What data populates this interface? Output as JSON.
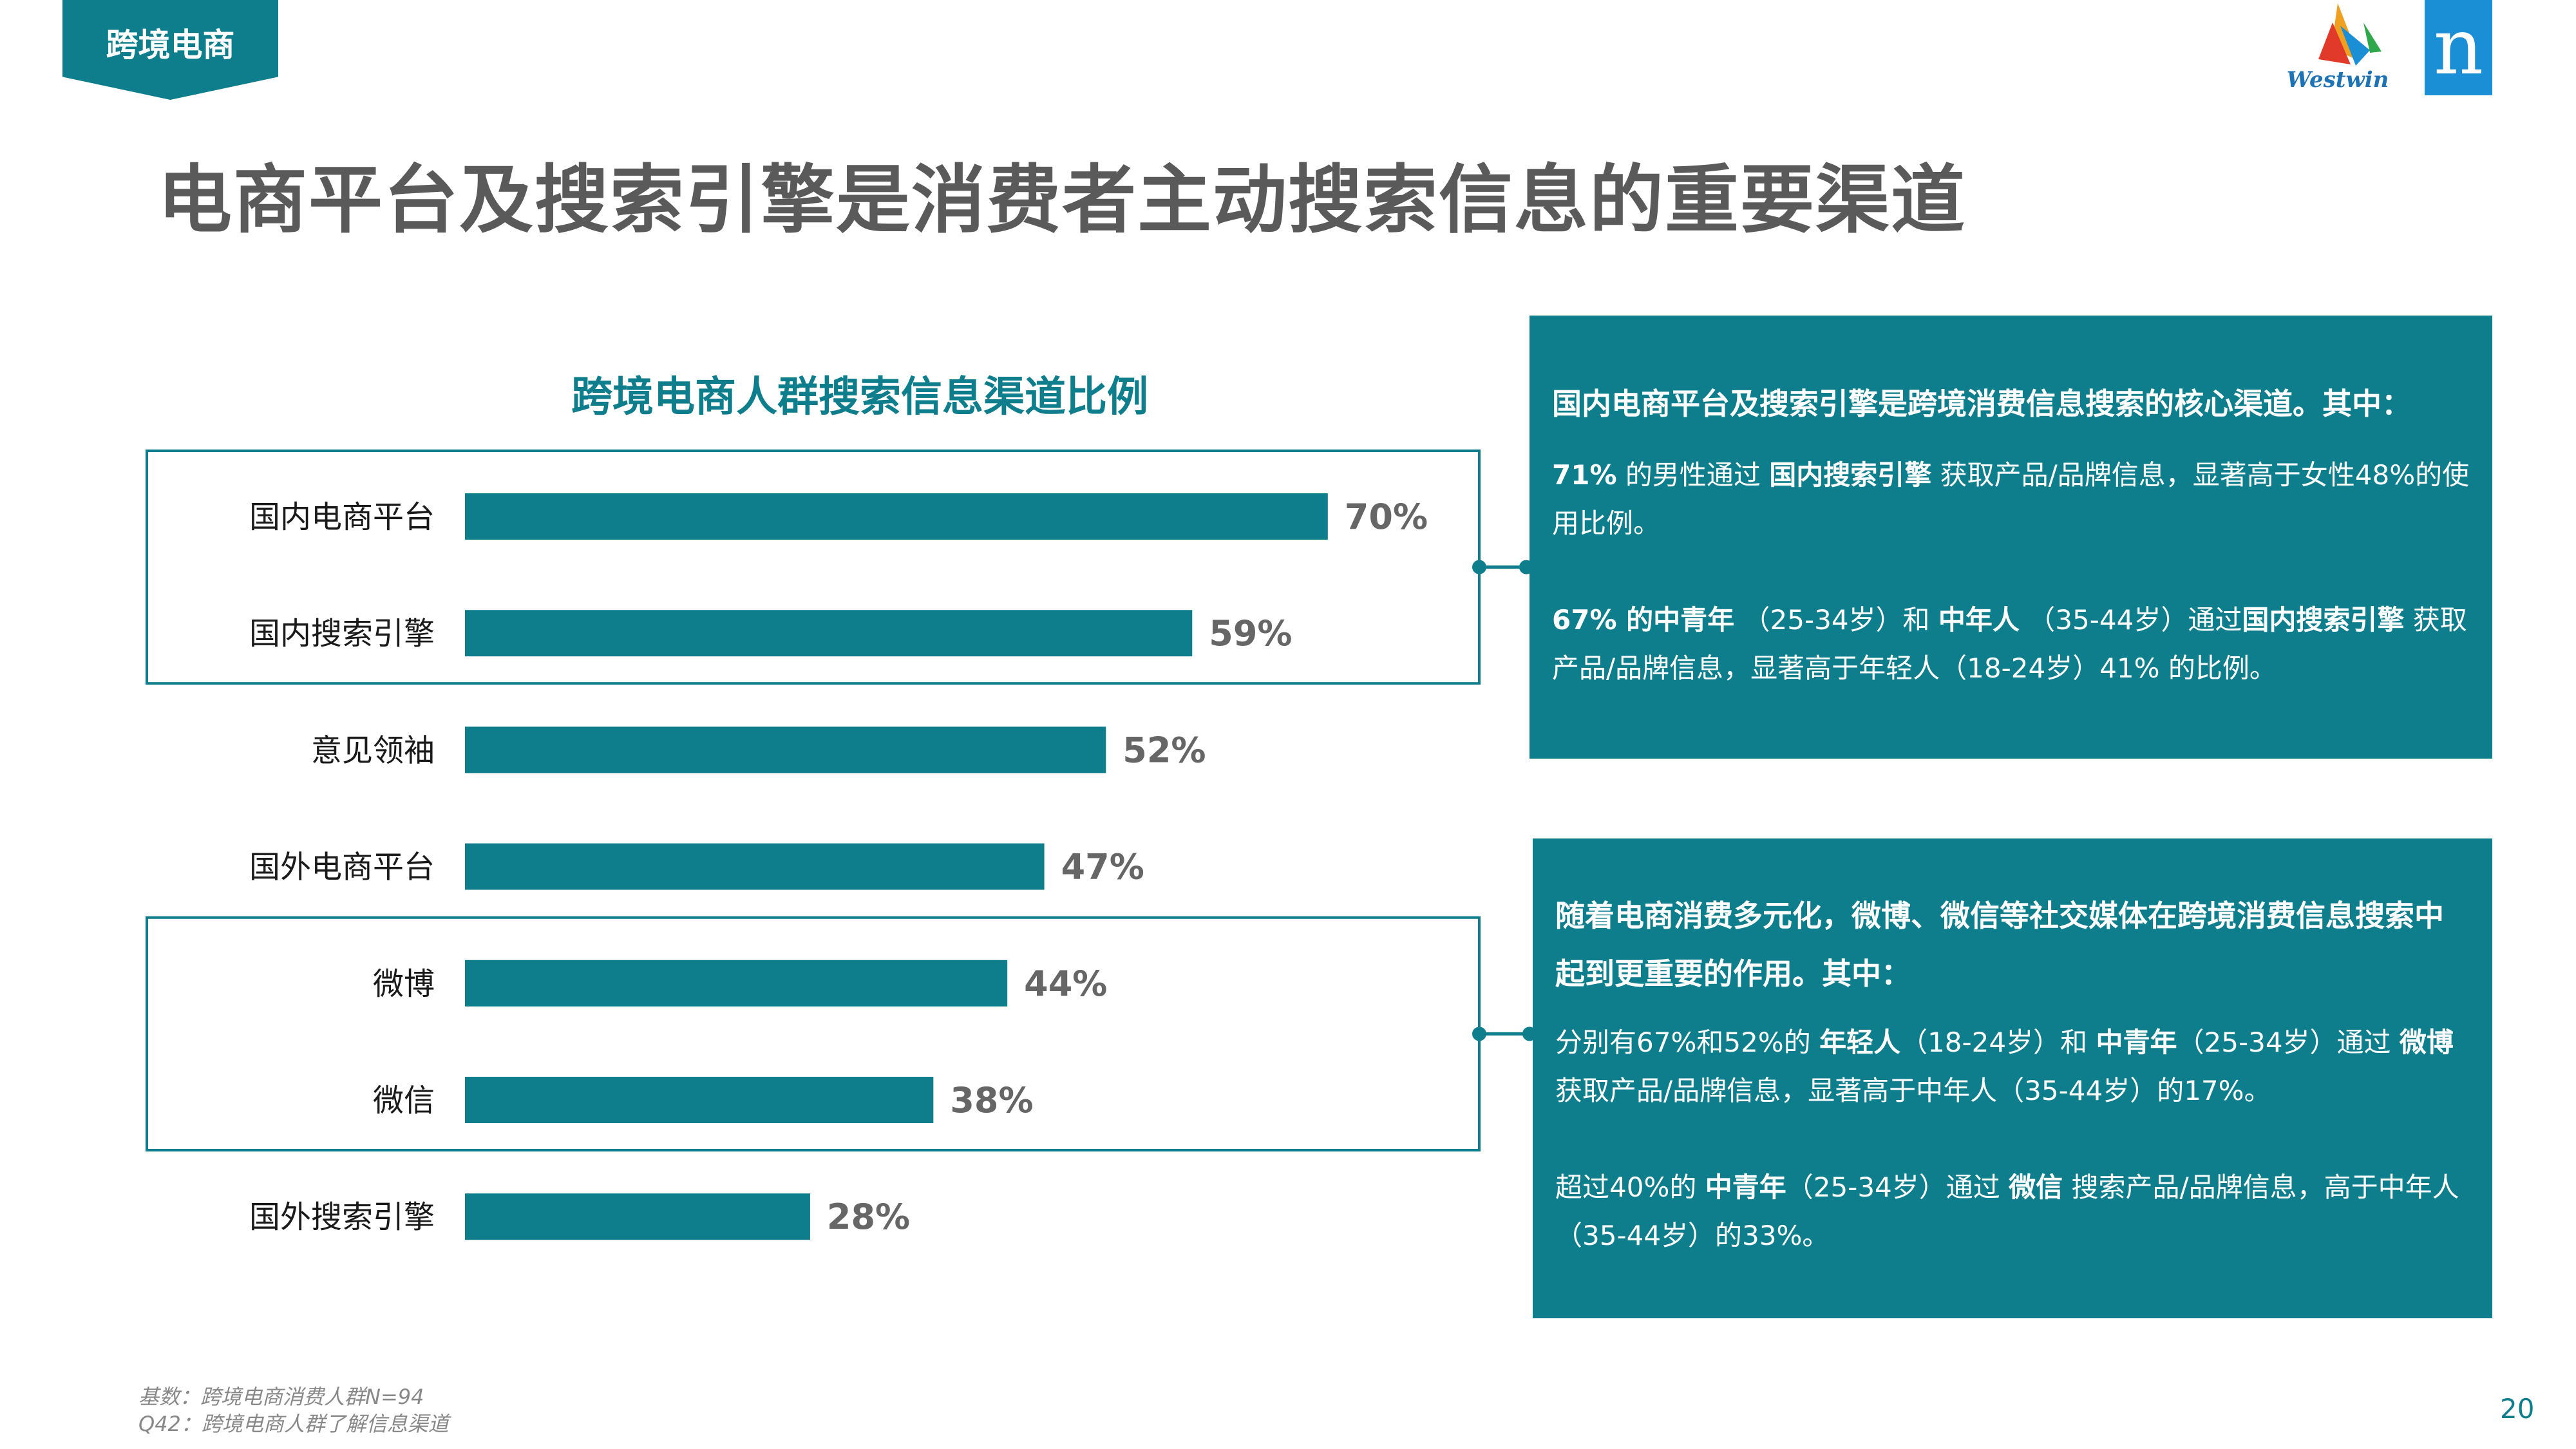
{
  "header": {
    "tag": "跨境电商",
    "logo_westwin": "Westwin",
    "logo_n": "n",
    "title": "电商平台及搜索引擎是消费者主动搜索信息的重要渠道"
  },
  "chart_data": {
    "type": "bar",
    "orientation": "horizontal",
    "title": "跨境电商人群搜索信息渠道比例",
    "categories": [
      "国内电商平台",
      "国内搜索引擎",
      "意见领袖",
      "国外电商平台",
      "微博",
      "微信",
      "国外搜索引擎"
    ],
    "values": [
      70,
      59,
      52,
      47,
      44,
      38,
      28
    ],
    "value_labels": [
      "70%",
      "59%",
      "52%",
      "47%",
      "44%",
      "38%",
      "28%"
    ],
    "xlim": [
      0,
      100
    ],
    "bar_color": "#0e7d8c",
    "highlight_groups": [
      {
        "categories": [
          "国内电商平台",
          "国内搜索引擎"
        ],
        "links_to": "panel1"
      },
      {
        "categories": [
          "微博",
          "微信"
        ],
        "links_to": "panel2"
      }
    ]
  },
  "panel1": {
    "heading": "国内电商平台及搜索引擎是跨境消费信息搜索的核心渠道。其中：",
    "p1": {
      "a": "71%",
      "b": " 的男性通过 ",
      "c": "国内搜索引擎",
      "d": " 获取产品/品牌信息，显著高于女性48%的使用比例。"
    },
    "p2": {
      "a": "67% 的中青年",
      "b": " （25-34岁）和 ",
      "c": "中年人",
      "d": " （35-44岁）通过",
      "e": "国内搜索引擎",
      "f": " 获取产品/品牌信息，显著高于年轻人（18-24岁）41% 的比例。"
    }
  },
  "panel2": {
    "heading": "随着电商消费多元化，微博、微信等社交媒体在跨境消费信息搜索中起到更重要的作用。其中：",
    "p1": {
      "a": "分别有67%和52%的 ",
      "b": "年轻人",
      "c": "（18-24岁）和 ",
      "d": "中青年",
      "e": "（25-34岁）通过 ",
      "f": "微博",
      "g": " 获取产品/品牌信息，显著高于中年人（35-44岁）的17%。"
    },
    "p2": {
      "a": "超过40%的 ",
      "b": "中青年",
      "c": "（25-34岁）通过 ",
      "d": "微信",
      "e": " 搜索产品/品牌信息，高于中年人（35-44岁）的33%。"
    }
  },
  "footnote": {
    "line1": "基数：跨境电商消费人群N=94",
    "line2": "Q42：跨境电商人群了解信息渠道"
  },
  "page_number": "20",
  "colors": {
    "teal": "#0e7d8c",
    "title_gray": "#5a5a5a",
    "logo_blue": "#1a8fd6"
  }
}
